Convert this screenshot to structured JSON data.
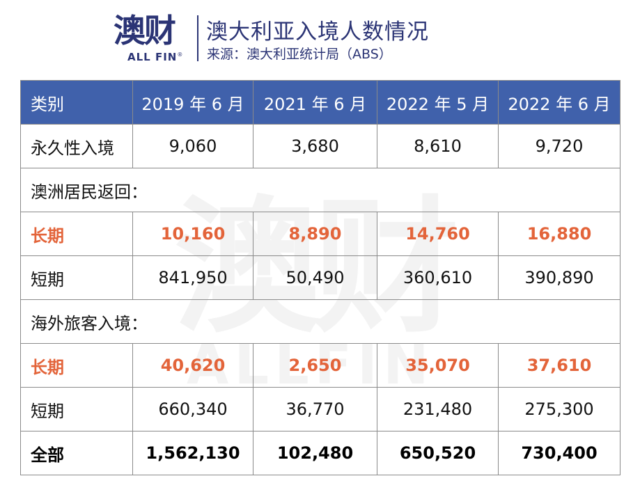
{
  "header": {
    "logo": {
      "cn": "澳财",
      "en": "ALL FIN",
      "registered": "®"
    },
    "title": "澳大利亚入境人数情况",
    "subtitle": "来源：澳大利亚统计局（ABS）"
  },
  "watermark": {
    "cn": "澳财",
    "en": "ALLFIN",
    "registered": "®"
  },
  "colors": {
    "header_bg": "#4061ab",
    "brand_navy": "#2b3475",
    "highlight": "#e3643a"
  },
  "table": {
    "columns": [
      "类别",
      "2019 年 6 月",
      "2021 年 6 月",
      "2022 年 5 月",
      "2022 年 6 月"
    ],
    "rows": [
      {
        "type": "data",
        "label": "永久性入境",
        "values": [
          "9,060",
          "3,680",
          "8,610",
          "9,720"
        ]
      },
      {
        "type": "section",
        "label": "澳洲居民返回："
      },
      {
        "type": "highlight",
        "label": "长期",
        "values": [
          "10,160",
          "8,890",
          "14,760",
          "16,880"
        ]
      },
      {
        "type": "data",
        "label": "短期",
        "values": [
          "841,950",
          "50,490",
          "360,610",
          "390,890"
        ]
      },
      {
        "type": "section",
        "label": "海外旅客入境："
      },
      {
        "type": "highlight",
        "label": "长期",
        "values": [
          "40,620",
          "2,650",
          "35,070",
          "37,610"
        ]
      },
      {
        "type": "data",
        "label": "短期",
        "values": [
          "660,340",
          "36,770",
          "231,480",
          "275,300"
        ]
      },
      {
        "type": "total",
        "label": "全部",
        "values": [
          "1,562,130",
          "102,480",
          "650,520",
          "730,400"
        ]
      }
    ]
  }
}
